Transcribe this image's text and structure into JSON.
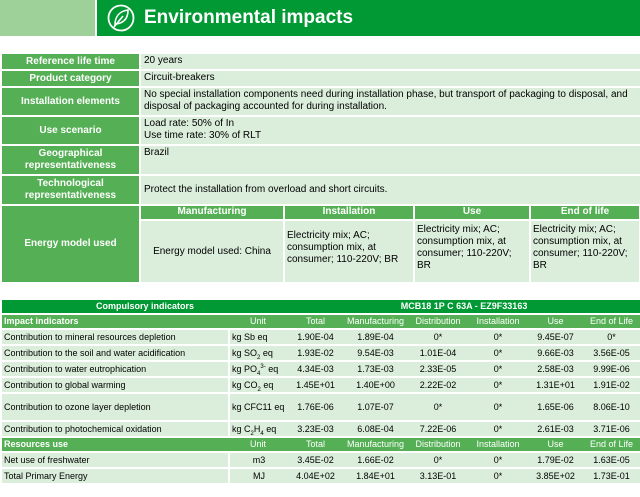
{
  "header": {
    "title": "Environmental impacts",
    "icon": "leaf-icon",
    "colors": {
      "bar": "#009933",
      "box": "#9ed09a"
    }
  },
  "info": {
    "reference_life_time": {
      "label": "Reference life time",
      "value": "20 years"
    },
    "product_category": {
      "label": "Product category",
      "value": "Circuit-breakers"
    },
    "installation_elements": {
      "label": "Installation elements",
      "value": "No special installation components need during installation phase, but transport of packaging to disposal, and disposal of packaging accounted for during installation."
    },
    "use_scenario": {
      "label": "Use scenario",
      "line1": "Load rate: 50% of In",
      "line2": "Use time rate: 30% of RLT"
    },
    "geographical": {
      "label": "Geographical representativeness",
      "value": "Brazil"
    },
    "technological": {
      "label": "Technological representativeness",
      "value": "Protect the installation from overload and short circuits."
    },
    "energy_model": {
      "label": "Energy model used",
      "headers": [
        "Manufacturing",
        "Installation",
        "Use",
        "End of life"
      ],
      "values": [
        "Energy model used: China",
        "Electricity mix; AC; consumption mix, at consumer; 110-220V; BR",
        "Electricity mix; AC; consumption mix, at consumer; 110-220V; BR",
        "Electricity mix; AC; consumption mix, at consumer; 110-220V; BR"
      ]
    }
  },
  "indicators": {
    "title_left": "Compulsory indicators",
    "title_right": "MCB18 1P C 63A - EZ9F33163",
    "impact_section": {
      "name": "Impact indicators",
      "columns": [
        "Unit",
        "Total",
        "Manufacturing",
        "Distribution",
        "Installation",
        "Use",
        "End of Life"
      ]
    },
    "impact_rows": [
      {
        "name": "Contribution to mineral resources depletion",
        "unit_main": "kg Sb eq",
        "unit_sup": "",
        "unit_sub": "",
        "unit_tail": "",
        "values": [
          "1.90E-04",
          "1.89E-04",
          "0*",
          "0*",
          "9.45E-07",
          "0*"
        ]
      },
      {
        "name": "Contribution to the soil and water acidification",
        "unit_main": "kg SO",
        "unit_sub": "2",
        "unit_sup": "",
        "unit_tail": " eq",
        "values": [
          "1.93E-02",
          "9.54E-03",
          "1.01E-04",
          "0*",
          "9.66E-03",
          "3.56E-05"
        ]
      },
      {
        "name": "Contribution to water eutrophication",
        "unit_main": "kg PO",
        "unit_sub": "4",
        "unit_sup": "3-",
        "unit_tail": " eq",
        "values": [
          "4.34E-03",
          "1.73E-03",
          "2.33E-05",
          "0*",
          "2.58E-03",
          "9.99E-06"
        ]
      },
      {
        "name": "Contribution to global warming",
        "unit_main": "kg CO",
        "unit_sub": "2",
        "unit_sup": "",
        "unit_tail": " eq",
        "values": [
          "1.45E+01",
          "1.40E+00",
          "2.22E-02",
          "0*",
          "1.31E+01",
          "1.91E-02"
        ]
      },
      {
        "name": "Contribution to ozone layer depletion",
        "unit_main": "kg CFC11 eq",
        "unit_sub": "",
        "unit_sup": "",
        "unit_tail": "",
        "values": [
          "1.76E-06",
          "1.07E-07",
          "0*",
          "0*",
          "1.65E-06",
          "8.06E-10"
        ]
      },
      {
        "name": "Contribution to photochemical oxidation",
        "unit_main": "kg C",
        "unit_sub": "2",
        "unit_sup": "",
        "unit_tail": "H",
        "unit_sub2": "4",
        "unit_tail2": " eq",
        "values": [
          "3.23E-03",
          "6.08E-04",
          "7.22E-06",
          "0*",
          "2.61E-03",
          "3.71E-06"
        ]
      }
    ],
    "resources_section": {
      "name": "Resources use",
      "columns": [
        "Unit",
        "Total",
        "Manufacturing",
        "Distribution",
        "Installation",
        "Use",
        "End of Life"
      ]
    },
    "resource_rows": [
      {
        "name": "Net use of freshwater",
        "unit": "m3",
        "values": [
          "3.45E-02",
          "1.66E-02",
          "0*",
          "0*",
          "1.79E-02",
          "1.63E-05"
        ]
      },
      {
        "name": "Total Primary Energy",
        "unit": "MJ",
        "values": [
          "4.04E+02",
          "1.84E+01",
          "3.13E-01",
          "0*",
          "3.85E+02",
          "1.73E-01"
        ]
      }
    ]
  }
}
